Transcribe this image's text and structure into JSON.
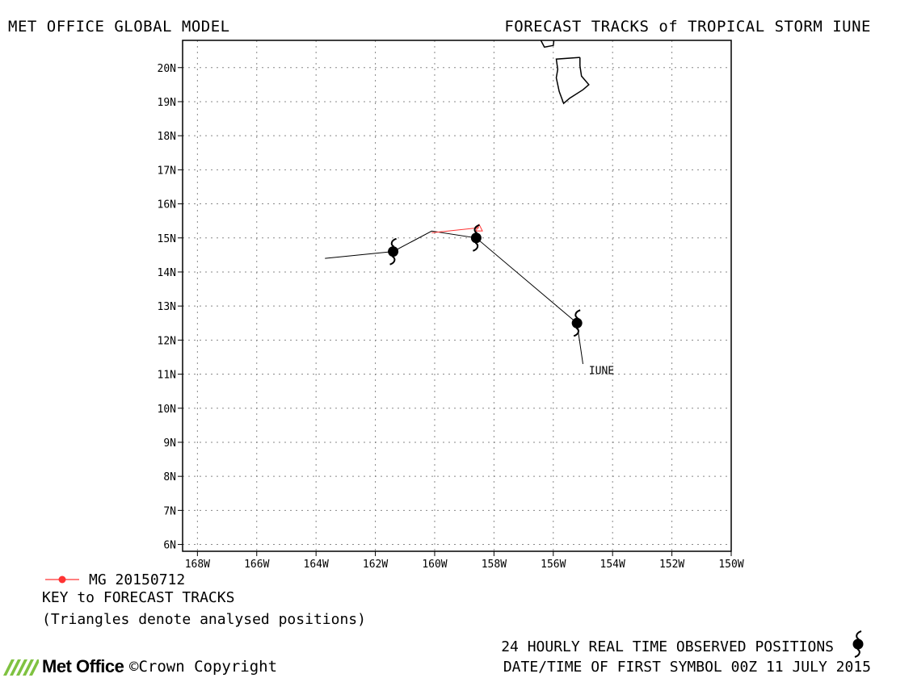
{
  "header": {
    "left_title": "MET OFFICE GLOBAL MODEL",
    "right_title": "FORECAST TRACKS of TROPICAL STORM IUNE"
  },
  "map": {
    "lon_range": [
      -168.5,
      -150
    ],
    "lat_range": [
      5.8,
      20.8
    ],
    "lat_ticks": [
      "6N",
      "7N",
      "8N",
      "9N",
      "10N",
      "11N",
      "12N",
      "13N",
      "14N",
      "15N",
      "16N",
      "17N",
      "18N",
      "19N",
      "20N"
    ],
    "lon_ticks": [
      "168W",
      "166W",
      "164W",
      "162W",
      "160W",
      "158W",
      "156W",
      "154W",
      "152W",
      "150W"
    ],
    "grid": "dotted",
    "storm_label": "IUNE",
    "storm_label_pos": {
      "lon": -154.8,
      "lat": 11.0
    },
    "colors": {
      "forecast_track": "#ff3333",
      "observed_track": "#000000",
      "coast": "#000000"
    },
    "observed_track": [
      {
        "lon": -163.7,
        "lat": 14.4
      },
      {
        "lon": -161.4,
        "lat": 14.6
      },
      {
        "lon": -160.1,
        "lat": 15.2
      },
      {
        "lon": -158.6,
        "lat": 15.0
      },
      {
        "lon": -155.2,
        "lat": 12.5
      },
      {
        "lon": -155.0,
        "lat": 11.3
      }
    ],
    "observed_symbols": [
      {
        "lon": -161.4,
        "lat": 14.6
      },
      {
        "lon": -158.6,
        "lat": 15.0
      },
      {
        "lon": -155.2,
        "lat": 12.5
      }
    ],
    "forecast_track": [
      {
        "lon": -160.1,
        "lat": 15.15
      },
      {
        "lon": -158.5,
        "lat": 15.3
      }
    ],
    "analysed_triangle": {
      "lon": -158.5,
      "lat": 15.3
    },
    "islands": [
      {
        "name": "hawaii-big-island",
        "points": [
          [
            -155.1,
            20.3
          ],
          [
            -155.9,
            20.25
          ],
          [
            -155.85,
            19.95
          ],
          [
            -155.9,
            19.7
          ],
          [
            -155.8,
            19.3
          ],
          [
            -155.65,
            18.95
          ],
          [
            -155.45,
            19.1
          ],
          [
            -155.0,
            19.35
          ],
          [
            -154.8,
            19.5
          ],
          [
            -155.05,
            19.75
          ],
          [
            -155.1,
            20.05
          ],
          [
            -155.1,
            20.3
          ]
        ]
      },
      {
        "name": "maui",
        "points": [
          [
            -156.45,
            20.85
          ],
          [
            -156.3,
            20.6
          ],
          [
            -156.0,
            20.65
          ],
          [
            -155.98,
            20.78
          ]
        ]
      }
    ]
  },
  "key": {
    "model_label": "MG 20150712",
    "title": "KEY to FORECAST TRACKS",
    "note": "(Triangles denote analysed positions)"
  },
  "footer": {
    "observed": "24 HOURLY REAL TIME OBSERVED POSITIONS",
    "datetime": "DATE/TIME OF FIRST SYMBOL 00Z 11 JULY 2015",
    "logo_text": "Met Office",
    "copyright": "Crown Copyright",
    "copyright_symbol": "©"
  }
}
